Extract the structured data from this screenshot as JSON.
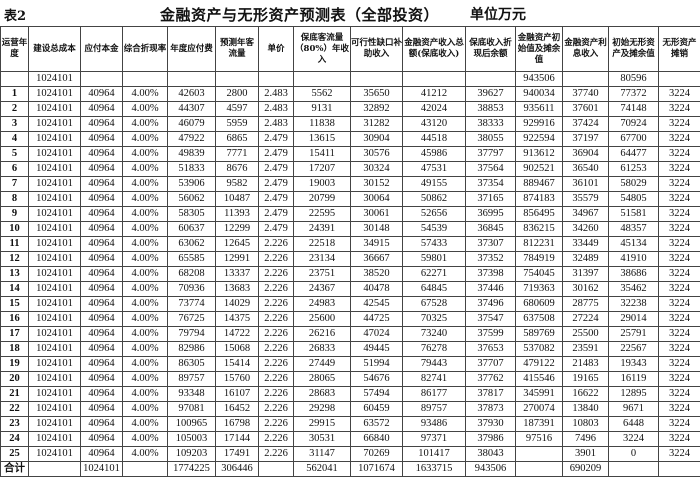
{
  "table_label": "表2",
  "title": "金融资产与无形资产预测表（全部投资）",
  "unit": "单位万元",
  "columns": [
    "运营年度",
    "建设总成本",
    "应付本金",
    "综合折现率",
    "年度应付费",
    "预测年客流量",
    "单价",
    "保底客流量（80%）年收入",
    "可行性缺口补助收入",
    "金融资产收入总额(保底收入)",
    "保底收入折现后余额",
    "金融资产初始值及摊余值",
    "金融资产利息收入",
    "初始无形资产及摊余值",
    "无形资产摊销"
  ],
  "rows": [
    [
      "",
      "1024101",
      "",
      "",
      "",
      "",
      "",
      "",
      "",
      "",
      "",
      "943506",
      "",
      "80596",
      ""
    ],
    [
      "1",
      "1024101",
      "40964",
      "4.00%",
      "42603",
      "2800",
      "2.483",
      "5562",
      "35650",
      "41212",
      "39627",
      "940034",
      "37740",
      "77372",
      "3224"
    ],
    [
      "2",
      "1024101",
      "40964",
      "4.00%",
      "44307",
      "4597",
      "2.483",
      "9131",
      "32892",
      "42024",
      "38853",
      "935611",
      "37601",
      "74148",
      "3224"
    ],
    [
      "3",
      "1024101",
      "40964",
      "4.00%",
      "46079",
      "5959",
      "2.483",
      "11838",
      "31282",
      "43120",
      "38333",
      "929916",
      "37424",
      "70924",
      "3224"
    ],
    [
      "4",
      "1024101",
      "40964",
      "4.00%",
      "47922",
      "6865",
      "2.479",
      "13615",
      "30904",
      "44518",
      "38055",
      "922594",
      "37197",
      "67700",
      "3224"
    ],
    [
      "5",
      "1024101",
      "40964",
      "4.00%",
      "49839",
      "7771",
      "2.479",
      "15411",
      "30576",
      "45986",
      "37797",
      "913612",
      "36904",
      "64477",
      "3224"
    ],
    [
      "6",
      "1024101",
      "40964",
      "4.00%",
      "51833",
      "8676",
      "2.479",
      "17207",
      "30324",
      "47531",
      "37564",
      "902521",
      "36540",
      "61253",
      "3224"
    ],
    [
      "7",
      "1024101",
      "40964",
      "4.00%",
      "53906",
      "9582",
      "2.479",
      "19003",
      "30152",
      "49155",
      "37354",
      "889467",
      "36101",
      "58029",
      "3224"
    ],
    [
      "8",
      "1024101",
      "40964",
      "4.00%",
      "56062",
      "10487",
      "2.479",
      "20799",
      "30064",
      "50862",
      "37165",
      "874183",
      "35579",
      "54805",
      "3224"
    ],
    [
      "9",
      "1024101",
      "40964",
      "4.00%",
      "58305",
      "11393",
      "2.479",
      "22595",
      "30061",
      "52656",
      "36995",
      "856495",
      "34967",
      "51581",
      "3224"
    ],
    [
      "10",
      "1024101",
      "40964",
      "4.00%",
      "60637",
      "12299",
      "2.479",
      "24391",
      "30148",
      "54539",
      "36845",
      "836215",
      "34260",
      "48357",
      "3224"
    ],
    [
      "11",
      "1024101",
      "40964",
      "4.00%",
      "63062",
      "12645",
      "2.226",
      "22518",
      "34915",
      "57433",
      "37307",
      "812231",
      "33449",
      "45134",
      "3224"
    ],
    [
      "12",
      "1024101",
      "40964",
      "4.00%",
      "65585",
      "12991",
      "2.226",
      "23134",
      "36667",
      "59801",
      "37352",
      "784919",
      "32489",
      "41910",
      "3224"
    ],
    [
      "13",
      "1024101",
      "40964",
      "4.00%",
      "68208",
      "13337",
      "2.226",
      "23751",
      "38520",
      "62271",
      "37398",
      "754045",
      "31397",
      "38686",
      "3224"
    ],
    [
      "14",
      "1024101",
      "40964",
      "4.00%",
      "70936",
      "13683",
      "2.226",
      "24367",
      "40478",
      "64845",
      "37446",
      "719363",
      "30162",
      "35462",
      "3224"
    ],
    [
      "15",
      "1024101",
      "40964",
      "4.00%",
      "73774",
      "14029",
      "2.226",
      "24983",
      "42545",
      "67528",
      "37496",
      "680609",
      "28775",
      "32238",
      "3224"
    ],
    [
      "16",
      "1024101",
      "40964",
      "4.00%",
      "76725",
      "14375",
      "2.226",
      "25600",
      "44725",
      "70325",
      "37547",
      "637508",
      "27224",
      "29014",
      "3224"
    ],
    [
      "17",
      "1024101",
      "40964",
      "4.00%",
      "79794",
      "14722",
      "2.226",
      "26216",
      "47024",
      "73240",
      "37599",
      "589769",
      "25500",
      "25791",
      "3224"
    ],
    [
      "18",
      "1024101",
      "40964",
      "4.00%",
      "82986",
      "15068",
      "2.226",
      "26833",
      "49445",
      "76278",
      "37653",
      "537082",
      "23591",
      "22567",
      "3224"
    ],
    [
      "19",
      "1024101",
      "40964",
      "4.00%",
      "86305",
      "15414",
      "2.226",
      "27449",
      "51994",
      "79443",
      "37707",
      "479122",
      "21483",
      "19343",
      "3224"
    ],
    [
      "20",
      "1024101",
      "40964",
      "4.00%",
      "89757",
      "15760",
      "2.226",
      "28065",
      "54676",
      "82741",
      "37762",
      "415546",
      "19165",
      "16119",
      "3224"
    ],
    [
      "21",
      "1024101",
      "40964",
      "4.00%",
      "93348",
      "16107",
      "2.226",
      "28683",
      "57494",
      "86177",
      "37817",
      "345991",
      "16622",
      "12895",
      "3224"
    ],
    [
      "22",
      "1024101",
      "40964",
      "4.00%",
      "97081",
      "16452",
      "2.226",
      "29298",
      "60459",
      "89757",
      "37873",
      "270074",
      "13840",
      "9671",
      "3224"
    ],
    [
      "23",
      "1024101",
      "40964",
      "4.00%",
      "100965",
      "16798",
      "2.226",
      "29915",
      "63572",
      "93486",
      "37930",
      "187391",
      "10803",
      "6448",
      "3224"
    ],
    [
      "24",
      "1024101",
      "40964",
      "4.00%",
      "105003",
      "17144",
      "2.226",
      "30531",
      "66840",
      "97371",
      "37986",
      "97516",
      "7496",
      "3224",
      "3224"
    ],
    [
      "25",
      "1024101",
      "40964",
      "4.00%",
      "109203",
      "17491",
      "2.226",
      "31147",
      "70269",
      "101417",
      "38043",
      "",
      "3901",
      "0",
      "3224"
    ],
    [
      "合计",
      "",
      "1024101",
      "",
      "1774225",
      "306446",
      "",
      "562041",
      "1071674",
      "1633715",
      "943506",
      "",
      "690209",
      "",
      ""
    ]
  ]
}
